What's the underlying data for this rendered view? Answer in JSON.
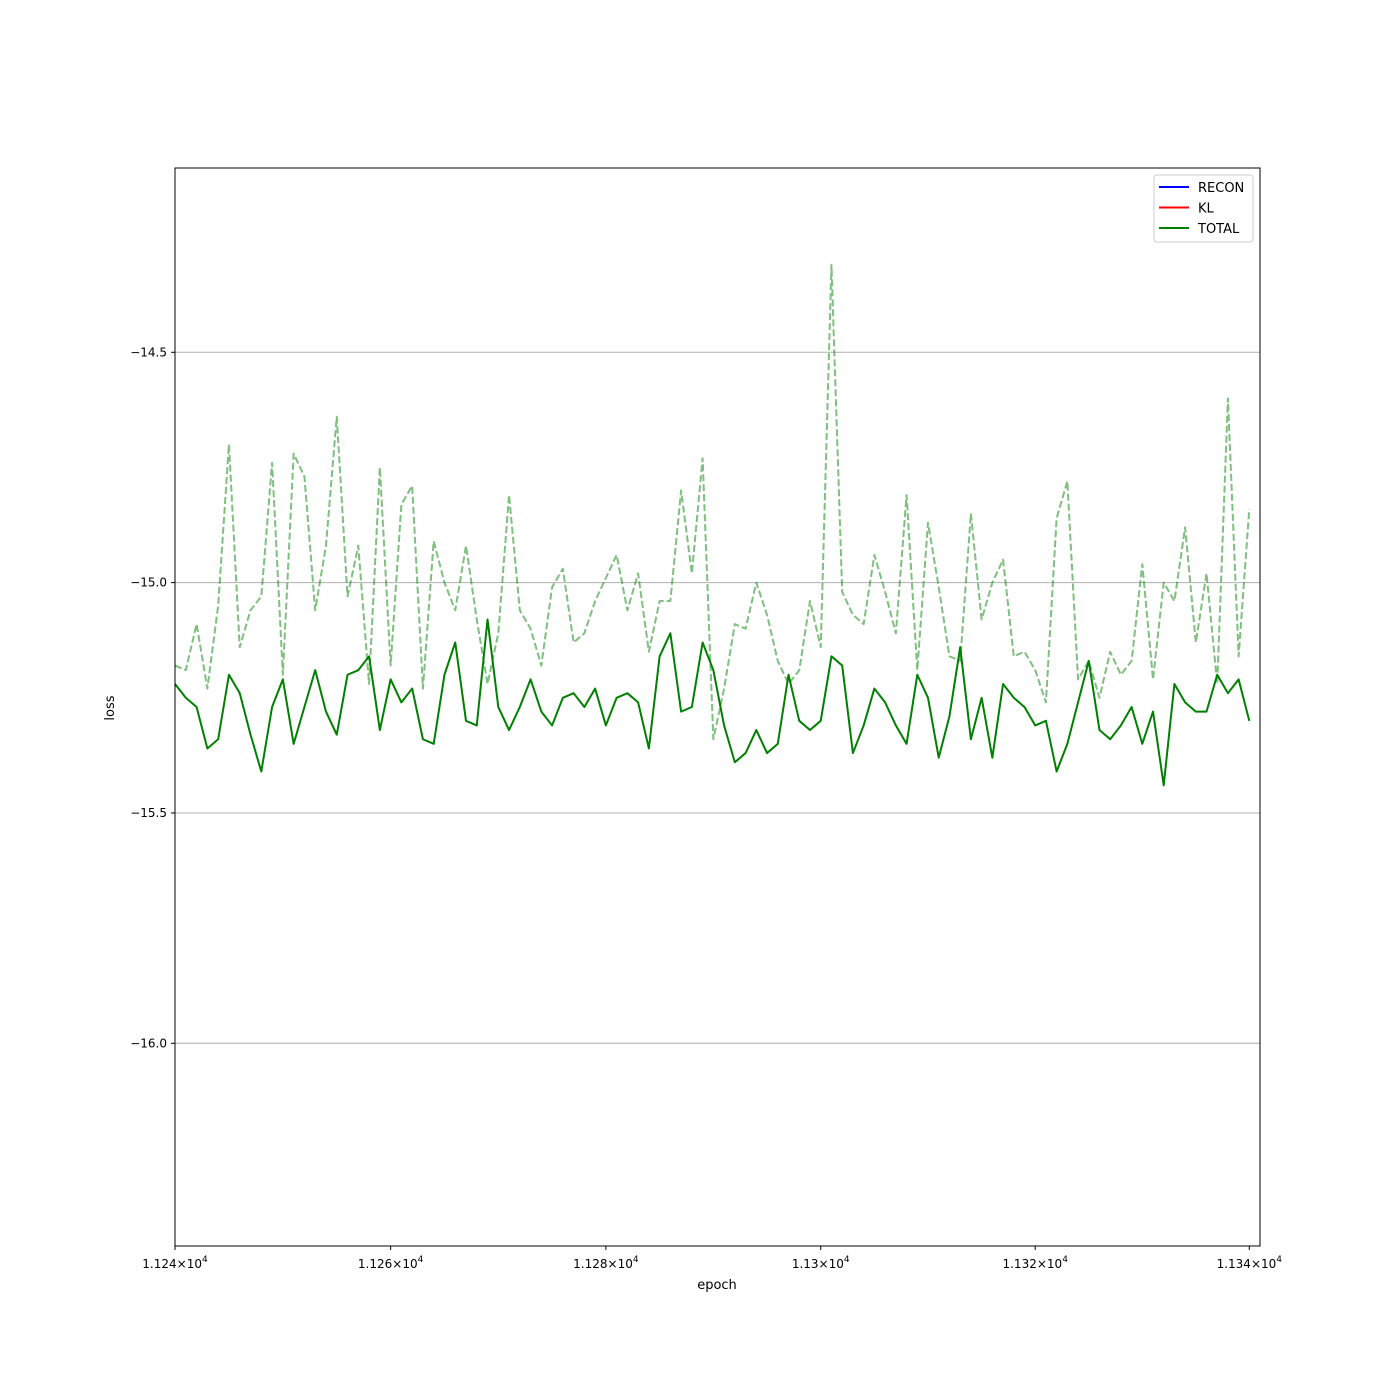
{
  "chart_data": {
    "type": "line",
    "title": "",
    "xlabel": "epoch",
    "ylabel": "loss",
    "xscale": "log",
    "xlim": [
      11240,
      11341
    ],
    "ylim": [
      -16.44,
      -14.1
    ],
    "grid": "y-major",
    "legend_position": "top-right",
    "x_tick_values": [
      11240,
      11260,
      11280,
      11300,
      11320,
      11340
    ],
    "x_tick_labels": [
      {
        "base": "1.124",
        "times": "×",
        "mantissa": "10",
        "exp": "4"
      },
      {
        "base": "1.126",
        "times": "×",
        "mantissa": "10",
        "exp": "4"
      },
      {
        "base": "1.128",
        "times": "×",
        "mantissa": "10",
        "exp": "4"
      },
      {
        "base": "1.13",
        "times": "×",
        "mantissa": "10",
        "exp": "4"
      },
      {
        "base": "1.132",
        "times": "×",
        "mantissa": "10",
        "exp": "4"
      },
      {
        "base": "1.134",
        "times": "×",
        "mantissa": "10",
        "exp": "4"
      }
    ],
    "y_ticks": [
      {
        "value": -14.5,
        "label": "−14.5"
      },
      {
        "value": -15.0,
        "label": "−15.0"
      },
      {
        "value": -15.5,
        "label": "−15.5"
      },
      {
        "value": -16.0,
        "label": "−16.0"
      }
    ],
    "legend": [
      {
        "name": "RECON",
        "color": "#0000ff"
      },
      {
        "name": "KL",
        "color": "#ff0000"
      },
      {
        "name": "TOTAL",
        "color": "#008000"
      }
    ],
    "x_start": 11240,
    "x_step": 1,
    "series": [
      {
        "name": "TOTAL",
        "color": "#008000",
        "style": "solid",
        "values": [
          -15.22,
          -15.25,
          -15.27,
          -15.36,
          -15.34,
          -15.2,
          -15.24,
          -15.33,
          -15.41,
          -15.27,
          -15.21,
          -15.35,
          -15.27,
          -15.19,
          -15.28,
          -15.33,
          -15.2,
          -15.19,
          -15.16,
          -15.32,
          -15.21,
          -15.26,
          -15.23,
          -15.34,
          -15.35,
          -15.2,
          -15.13,
          -15.3,
          -15.31,
          -15.08,
          -15.27,
          -15.32,
          -15.27,
          -15.21,
          -15.28,
          -15.31,
          -15.25,
          -15.24,
          -15.27,
          -15.23,
          -15.31,
          -15.25,
          -15.24,
          -15.26,
          -15.36,
          -15.16,
          -15.11,
          -15.28,
          -15.27,
          -15.13,
          -15.19,
          -15.31,
          -15.39,
          -15.37,
          -15.32,
          -15.37,
          -15.35,
          -15.2,
          -15.3,
          -15.32,
          -15.3,
          -15.16,
          -15.18,
          -15.37,
          -15.31,
          -15.23,
          -15.26,
          -15.31,
          -15.35,
          -15.2,
          -15.25,
          -15.38,
          -15.29,
          -15.14,
          -15.34,
          -15.25,
          -15.38,
          -15.22,
          -15.25,
          -15.27,
          -15.31,
          -15.3,
          -15.41,
          -15.35,
          -15.26,
          -15.17,
          -15.32,
          -15.34,
          -15.31,
          -15.27,
          -15.35,
          -15.28,
          -15.44,
          -15.22,
          -15.26,
          -15.28,
          -15.28,
          -15.2,
          -15.24,
          -15.21,
          -15.3
        ]
      },
      {
        "name": "",
        "color": "#008000",
        "style": "dashed",
        "opacity": 0.5,
        "values": [
          -15.18,
          -15.19,
          -15.09,
          -15.23,
          -15.05,
          -14.7,
          -15.14,
          -15.06,
          -15.03,
          -14.74,
          -15.2,
          -14.72,
          -14.77,
          -15.06,
          -14.92,
          -14.64,
          -15.03,
          -14.92,
          -15.22,
          -14.75,
          -15.18,
          -14.83,
          -14.79,
          -15.23,
          -14.91,
          -15.0,
          -15.06,
          -14.92,
          -15.08,
          -15.22,
          -15.11,
          -14.81,
          -15.06,
          -15.1,
          -15.18,
          -15.01,
          -14.97,
          -15.13,
          -15.11,
          -15.04,
          -14.99,
          -14.94,
          -15.06,
          -14.98,
          -15.15,
          -15.04,
          -15.04,
          -14.8,
          -14.98,
          -14.73,
          -15.34,
          -15.23,
          -15.09,
          -15.1,
          -15.0,
          -15.07,
          -15.17,
          -15.22,
          -15.19,
          -15.04,
          -15.14,
          -14.31,
          -15.02,
          -15.07,
          -15.09,
          -14.94,
          -15.02,
          -15.11,
          -14.81,
          -15.19,
          -14.87,
          -15.01,
          -15.16,
          -15.17,
          -14.85,
          -15.08,
          -15.0,
          -14.95,
          -15.16,
          -15.15,
          -15.19,
          -15.26,
          -14.86,
          -14.78,
          -15.21,
          -15.17,
          -15.25,
          -15.15,
          -15.2,
          -15.17,
          -14.96,
          -15.21,
          -15.0,
          -15.04,
          -14.88,
          -15.13,
          -14.98,
          -15.22,
          -14.6,
          -15.16,
          -14.84
        ]
      }
    ]
  }
}
